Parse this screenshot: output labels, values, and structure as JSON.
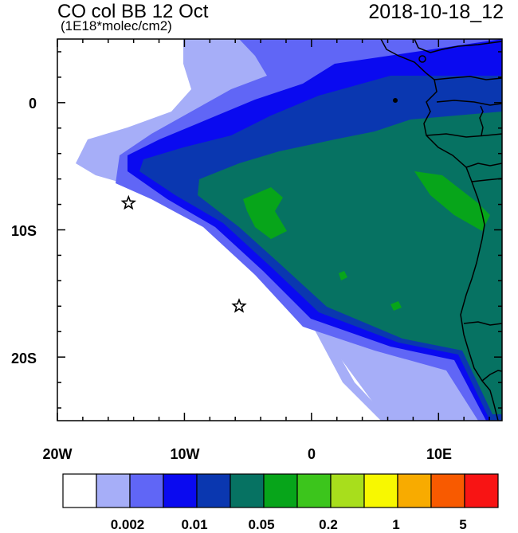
{
  "title": "CO col BB 12 Oct",
  "subtitle": "(1E18*molec/cm2)",
  "datetime": "2018-10-18_12",
  "map": {
    "lon_range": [
      -20,
      15
    ],
    "lat_range": [
      -25,
      5
    ],
    "y_ticks": [
      "0",
      "10S",
      "20S"
    ],
    "x_ticks": [
      "20W",
      "10W",
      "0",
      "10E"
    ],
    "markers": [
      {
        "lon": -14.4,
        "lat": -7.9,
        "symbol": "star"
      },
      {
        "lon": -5.7,
        "lat": -16.0,
        "symbol": "star"
      }
    ],
    "marker_icon": "star-icon"
  },
  "colorbar": {
    "colors": [
      "#ffffff",
      "#a6aef8",
      "#6066f6",
      "#0a0af0",
      "#0a37b0",
      "#067262",
      "#07a51a",
      "#3cc51c",
      "#a8de1c",
      "#f8f800",
      "#f8ab00",
      "#f85a00",
      "#f81414"
    ],
    "labels": [
      "0.002",
      "0.01",
      "0.05",
      "0.2",
      "1",
      "5"
    ]
  }
}
